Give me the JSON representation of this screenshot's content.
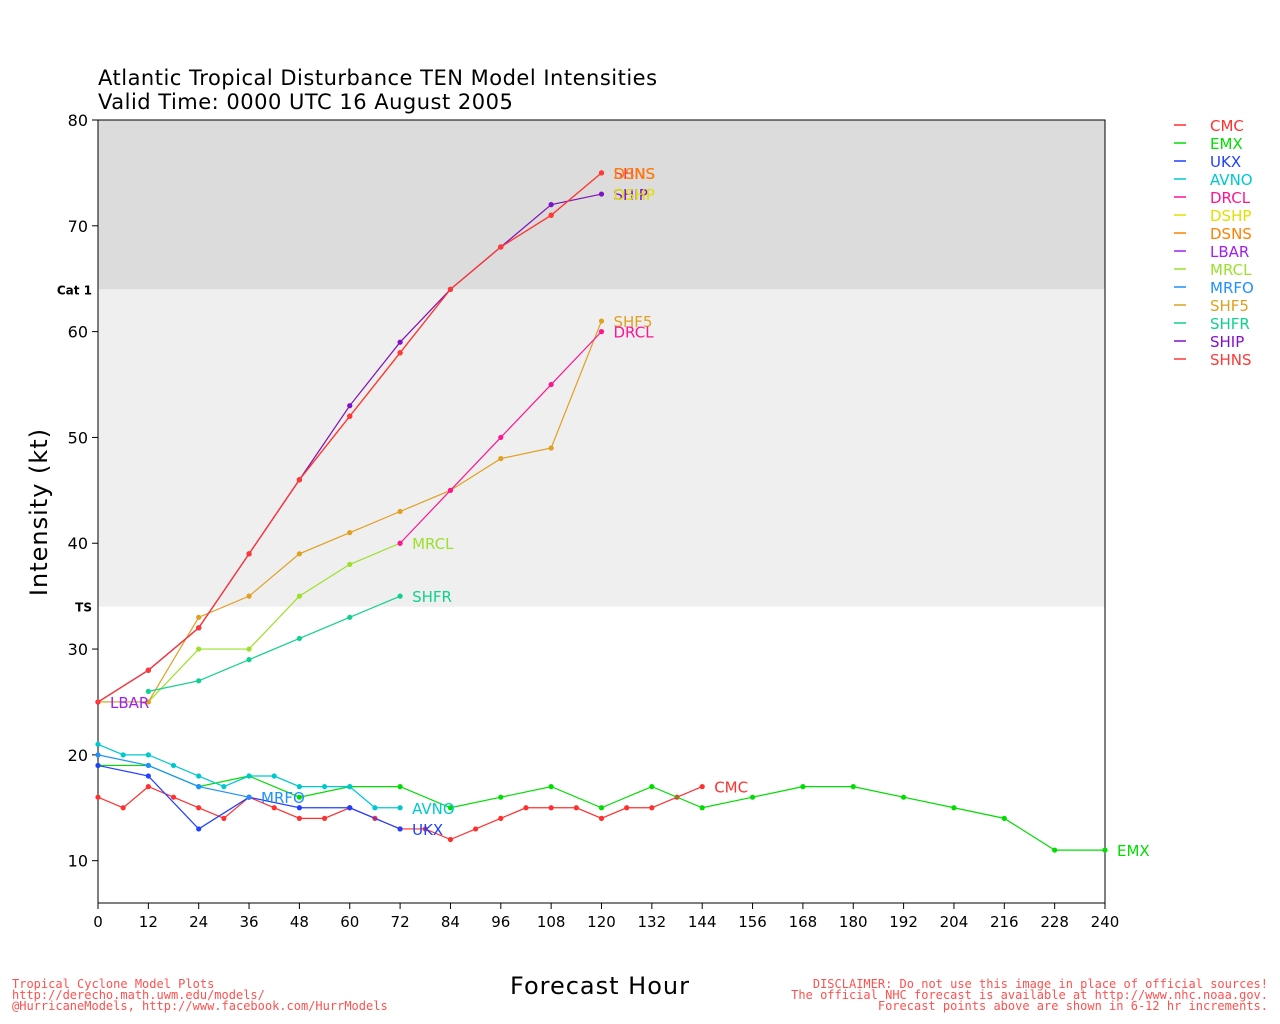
{
  "title_line1": "Atlantic Tropical Disturbance TEN Model Intensities",
  "title_line2": "Valid Time: 0000 UTC 16 August 2005",
  "footer_left": [
    "Tropical Cyclone Model Plots",
    "http://derecho.math.uwm.edu/models/",
    "@HurricaneModels, http://www.facebook.com/HurrModels"
  ],
  "footer_right": [
    "DISCLAIMER: Do not use this image in place of official sources!",
    "The official NHC forecast is available at http://www.nhc.noaa.gov.",
    "Forecast points above are shown in 6-12 hr increments."
  ],
  "chart_data": {
    "type": "line",
    "xlabel": "Forecast Hour",
    "ylabel": "Intensity (kt)",
    "xlim": [
      0,
      240
    ],
    "ylim": [
      6,
      80
    ],
    "xticks": [
      0,
      12,
      24,
      36,
      48,
      60,
      72,
      84,
      96,
      108,
      120,
      132,
      144,
      156,
      168,
      180,
      192,
      204,
      216,
      228,
      240
    ],
    "yticks": [
      10,
      20,
      30,
      40,
      50,
      60,
      70,
      80
    ],
    "bands": [
      {
        "label": "TS",
        "from": 34,
        "to": 64,
        "color": "#efefef"
      },
      {
        "label": "Cat 1",
        "from": 64,
        "to": 80,
        "color": "#dcdcdc"
      }
    ],
    "legend_position": "right",
    "series": [
      {
        "name": "CMC",
        "color": "#ff3030",
        "label": "CMC",
        "x": [
          0,
          6,
          12,
          18,
          24,
          30,
          36,
          42,
          48,
          54,
          60,
          66,
          72,
          78,
          84,
          90,
          96,
          102,
          108,
          114,
          120,
          126,
          132,
          138,
          144
        ],
        "y": [
          16,
          15,
          17,
          16,
          15,
          14,
          16,
          15,
          14,
          14,
          15,
          14,
          13,
          13,
          12,
          13,
          14,
          15,
          15,
          15,
          14,
          15,
          15,
          16,
          17
        ]
      },
      {
        "name": "EMX",
        "color": "#00dd00",
        "label": "EMX",
        "x": [
          0,
          12,
          24,
          36,
          48,
          60,
          72,
          84,
          96,
          108,
          120,
          132,
          144,
          156,
          168,
          180,
          192,
          204,
          216,
          228,
          240
        ],
        "y": [
          19,
          19,
          17,
          18,
          16,
          17,
          17,
          15,
          16,
          17,
          15,
          17,
          15,
          16,
          17,
          17,
          16,
          15,
          14,
          11,
          11
        ]
      },
      {
        "name": "UKX",
        "color": "#2040ff",
        "label": "UKX",
        "x": [
          0,
          12,
          24,
          36,
          48,
          60,
          72
        ],
        "y": [
          19,
          18,
          13,
          16,
          15,
          15,
          13
        ]
      },
      {
        "name": "AVNO",
        "color": "#00c8d0",
        "label": "AVNO",
        "x": [
          0,
          6,
          12,
          18,
          24,
          30,
          36,
          42,
          48,
          54,
          60,
          66,
          72
        ],
        "y": [
          21,
          20,
          20,
          19,
          18,
          17,
          18,
          18,
          17,
          17,
          17,
          15,
          15
        ]
      },
      {
        "name": "DRCL",
        "color": "#ff1493",
        "label": "DRCL",
        "x": [
          0,
          12,
          24,
          36,
          48,
          60,
          72,
          84,
          96,
          108,
          120
        ],
        "y": [
          25,
          28,
          32,
          39,
          46,
          52,
          58,
          64,
          68,
          71,
          75
        ]
      },
      {
        "name": "DSHP",
        "color": "#e0e000",
        "label": "DSHP",
        "x": [
          0,
          12,
          24,
          36,
          48,
          60,
          72,
          84,
          96,
          108,
          120
        ],
        "y": [
          25,
          28,
          32,
          39,
          46,
          53,
          59,
          64,
          68,
          72,
          73
        ]
      },
      {
        "name": "DSNS",
        "color": "#ff7f00",
        "label": "DSNS",
        "x": [
          0,
          12,
          24,
          36,
          48,
          60,
          72,
          84,
          96,
          108,
          120
        ],
        "y": [
          25,
          28,
          32,
          39,
          46,
          52,
          58,
          64,
          68,
          71,
          75
        ]
      },
      {
        "name": "LBAR",
        "color": "#a020f0",
        "label": "LBAR",
        "x": [
          0
        ],
        "y": [
          25
        ]
      },
      {
        "name": "MRCL",
        "color": "#9be02a",
        "label": "MRCL",
        "x": [
          0,
          12,
          24,
          36,
          48,
          60,
          72
        ],
        "y": [
          25,
          25,
          30,
          30,
          35,
          38,
          40
        ]
      },
      {
        "name": "MRFO",
        "color": "#1e90ff",
        "label": "MRFO",
        "x": [
          0,
          12,
          24,
          36
        ],
        "y": [
          20,
          19,
          17,
          16
        ]
      },
      {
        "name": "SHF5",
        "color": "#e0a020",
        "label": "SHF5",
        "x": [
          0,
          12,
          24,
          36,
          48,
          60,
          72,
          84,
          96,
          108,
          120
        ],
        "y": [
          25,
          25,
          33,
          35,
          39,
          41,
          43,
          45,
          48,
          49,
          61
        ]
      },
      {
        "name": "SHFR",
        "color": "#10d090",
        "label": "SHFR",
        "x": [
          12,
          24,
          36,
          48,
          60,
          72
        ],
        "y": [
          26,
          27,
          29,
          31,
          33,
          35
        ]
      },
      {
        "name": "SHIP",
        "color": "#8010d0",
        "label": "SHIP",
        "x": [
          0,
          12,
          24,
          36,
          48,
          60,
          72,
          84,
          96,
          108,
          120
        ],
        "y": [
          25,
          28,
          32,
          39,
          46,
          53,
          59,
          64,
          68,
          72,
          73
        ]
      },
      {
        "name": "SHNS",
        "color": "#ff3838",
        "label": "SHNS",
        "x": [
          0,
          12,
          24,
          36,
          48,
          60,
          72,
          84,
          96,
          108,
          120
        ],
        "y": [
          25,
          28,
          32,
          39,
          46,
          52,
          58,
          64,
          68,
          71,
          75
        ]
      },
      {
        "name": "DRCL (late)",
        "color": "#ff1493",
        "label": "",
        "x": [
          72,
          84,
          96,
          108,
          120
        ],
        "y": [
          40,
          45,
          50,
          55,
          60
        ]
      }
    ],
    "end_labels": [
      {
        "text": "SHNS",
        "series": "SHNS"
      },
      {
        "text": "DSNS",
        "series": "DSNS"
      },
      {
        "text": "SHIP",
        "series": "SHIP"
      },
      {
        "text": "DSHP",
        "series": "DSHP"
      },
      {
        "text": "SHF5",
        "series": "SHF5"
      },
      {
        "text": "DRCL",
        "series": "DRCL (late)"
      },
      {
        "text": "MRCL",
        "series": "MRCL"
      },
      {
        "text": "SHFR",
        "series": "SHFR"
      },
      {
        "text": "LBAR",
        "series": "LBAR"
      },
      {
        "text": "MRFO",
        "series": "MRFO"
      },
      {
        "text": "AVNO",
        "series": "AVNO"
      },
      {
        "text": "UKX",
        "series": "UKX"
      },
      {
        "text": "CMC",
        "series": "CMC"
      },
      {
        "text": "EMX",
        "series": "EMX"
      }
    ]
  }
}
